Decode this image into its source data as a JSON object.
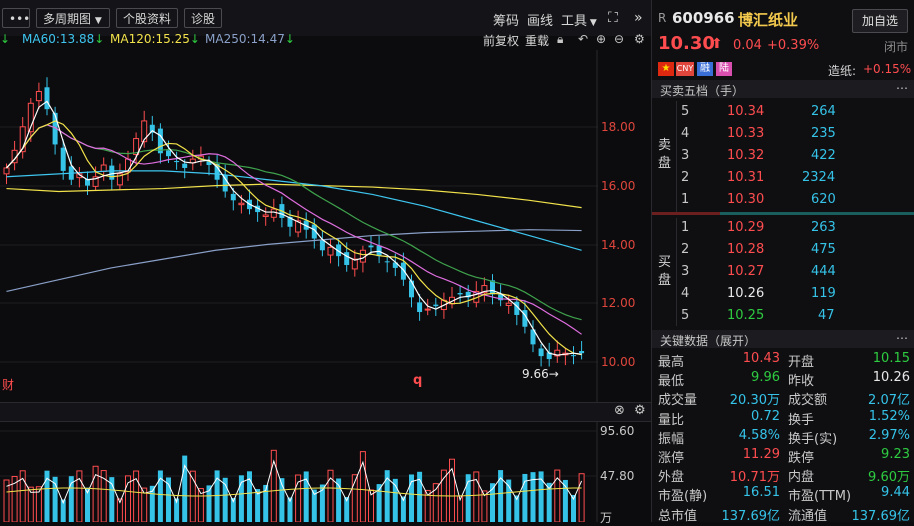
{
  "toolbar": {
    "more_label": "•••",
    "multi_period": "多周期图",
    "stock_info": "个股资料",
    "diagnose": "诊股",
    "chips": "筹码",
    "draw_line": "画线",
    "tools": "工具",
    "expand_glyph": "⛶",
    "collapse_glyph": "»"
  },
  "ma_row": {
    "ma_partial": "↓",
    "ma60": "MA60:13.88",
    "ma120": "MA120:15.25",
    "ma250": "MA250:14.47",
    "adjust": "前复权",
    "overlay": "重载",
    "ma_color_60": "#3ec6f0",
    "ma_color_120": "#f2e24b",
    "ma_color_250": "#8aa0c8"
  },
  "chart": {
    "price_labels": [
      "18.00",
      "16.00",
      "14.00",
      "12.00",
      "10.00"
    ],
    "low_marker": "9.66→",
    "bottom_tag_left": "财",
    "bottom_tag_q": "q",
    "volume_labels": [
      "95.60",
      "47.80",
      "万"
    ]
  },
  "chart_data": {
    "type": "candlestick",
    "price_axis": {
      "labels": [
        18,
        16,
        14,
        12,
        10
      ]
    },
    "low_annotation": 9.66,
    "volume_axis": {
      "labels": [
        95.6,
        47.8
      ],
      "unit": "万"
    },
    "moving_averages": [
      {
        "name": "MA60",
        "value": 13.88
      },
      {
        "name": "MA120",
        "value": 15.25
      },
      {
        "name": "MA250",
        "value": 14.47
      }
    ]
  },
  "quote": {
    "r_tag": "R",
    "code": "600966",
    "name": "博汇纸业",
    "add_watch": "加自选",
    "price": "10.30",
    "change": "0.04",
    "change_pct": "+0.39%",
    "market_status": "闭市",
    "tag_cny": "CNY",
    "tag_rong": "融",
    "tag_lu": "陆",
    "sector_label": "造纸:",
    "sector_change": "+0.15%"
  },
  "orderbook": {
    "title": "买卖五档（手）",
    "sell_side": "卖盘",
    "buy_side": "买盘",
    "sell": [
      {
        "level": "5",
        "price": "10.34",
        "vol": "264"
      },
      {
        "level": "4",
        "price": "10.33",
        "vol": "235"
      },
      {
        "level": "3",
        "price": "10.32",
        "vol": "422"
      },
      {
        "level": "2",
        "price": "10.31",
        "vol": "2324"
      },
      {
        "level": "1",
        "price": "10.30",
        "vol": "620"
      }
    ],
    "buy": [
      {
        "level": "1",
        "price": "10.29",
        "vol": "263"
      },
      {
        "level": "2",
        "price": "10.28",
        "vol": "475"
      },
      {
        "level": "3",
        "price": "10.27",
        "vol": "444"
      },
      {
        "level": "4",
        "price": "10.26",
        "vol": "119"
      },
      {
        "level": "5",
        "price": "10.25",
        "vol": "47"
      }
    ]
  },
  "key_data": {
    "title": "关键数据（展开）",
    "rows": [
      {
        "l1": "最高",
        "v1": "10.43",
        "l2": "开盘",
        "v2": "10.15"
      },
      {
        "l1": "最低",
        "v1": "9.96",
        "l2": "昨收",
        "v2": "10.26"
      },
      {
        "l1": "成交量",
        "v1": "20.30万",
        "l2": "成交额",
        "v2": "2.07亿"
      },
      {
        "l1": "量比",
        "v1": "0.72",
        "l2": "换手",
        "v2": "1.52%"
      },
      {
        "l1": "振幅",
        "v1": "4.58%",
        "l2": "换手(实)",
        "v2": "2.97%"
      },
      {
        "l1": "涨停",
        "v1": "11.29",
        "l2": "跌停",
        "v2": "9.23"
      },
      {
        "l1": "外盘",
        "v1": "10.71万",
        "l2": "内盘",
        "v2": "9.60万"
      },
      {
        "l1": "市盈(静)",
        "v1": "16.51",
        "l2": "市盈(TTM)",
        "v2": "9.44"
      },
      {
        "l1": "总市值",
        "v1": "137.69亿",
        "l2": "流通值",
        "v2": "137.69亿"
      }
    ]
  }
}
